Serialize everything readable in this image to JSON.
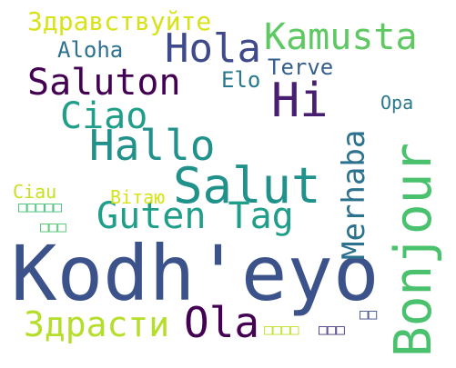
{
  "words": [
    {
      "id": "kodheyo",
      "text": "Kodh'eyo",
      "color": "#3b528b"
    },
    {
      "id": "bonjour",
      "text": "Bonjour",
      "color": "#4ac16d"
    },
    {
      "id": "salut",
      "text": "Salut",
      "color": "#21918c"
    },
    {
      "id": "hi",
      "text": "Hi",
      "color": "#481f70"
    },
    {
      "id": "hallo",
      "text": "Hallo",
      "color": "#21918c"
    },
    {
      "id": "hola",
      "text": "Hola",
      "color": "#3e4a89"
    },
    {
      "id": "guten-tag",
      "text": "Guten Tag",
      "color": "#1f9e89"
    },
    {
      "id": "kamusta",
      "text": "Kamusta",
      "color": "#5ec962"
    },
    {
      "id": "saluton",
      "text": "Saluton",
      "color": "#440154"
    },
    {
      "id": "ciao",
      "text": "Ciao",
      "color": "#1f9e89"
    },
    {
      "id": "ola",
      "text": "Ola",
      "color": "#440154"
    },
    {
      "id": "zdrasti",
      "text": "Здрасти",
      "color": "#b5de2b"
    },
    {
      "id": "merhaba",
      "text": "Merhaba",
      "color": "#2c728e"
    },
    {
      "id": "zdravstvuyte",
      "text": "Здравствуйте",
      "color": "#d8e219"
    },
    {
      "id": "aloha",
      "text": "Aloha",
      "color": "#2c728e"
    },
    {
      "id": "terve",
      "text": "Terve",
      "color": "#355f8d"
    },
    {
      "id": "elo",
      "text": "Elo",
      "color": "#2a788e"
    },
    {
      "id": "opa",
      "text": "Opa",
      "color": "#2a788e"
    },
    {
      "id": "vitayu",
      "text": "Вітаю",
      "color": "#d8e219"
    },
    {
      "id": "ciau",
      "text": "Ciau",
      "color": "#c8e020"
    },
    {
      "id": "glyph-a",
      "text": "□□□□□",
      "color": "#3dbc74"
    },
    {
      "id": "glyph-b",
      "text": "□□□",
      "color": "#4ac16d"
    },
    {
      "id": "glyph-c",
      "text": "□□□□",
      "color": "#bddf26"
    },
    {
      "id": "glyph-d",
      "text": "□□□",
      "color": "#46337e"
    },
    {
      "id": "glyph-e",
      "text": "□□",
      "color": "#3e4a89"
    }
  ]
}
